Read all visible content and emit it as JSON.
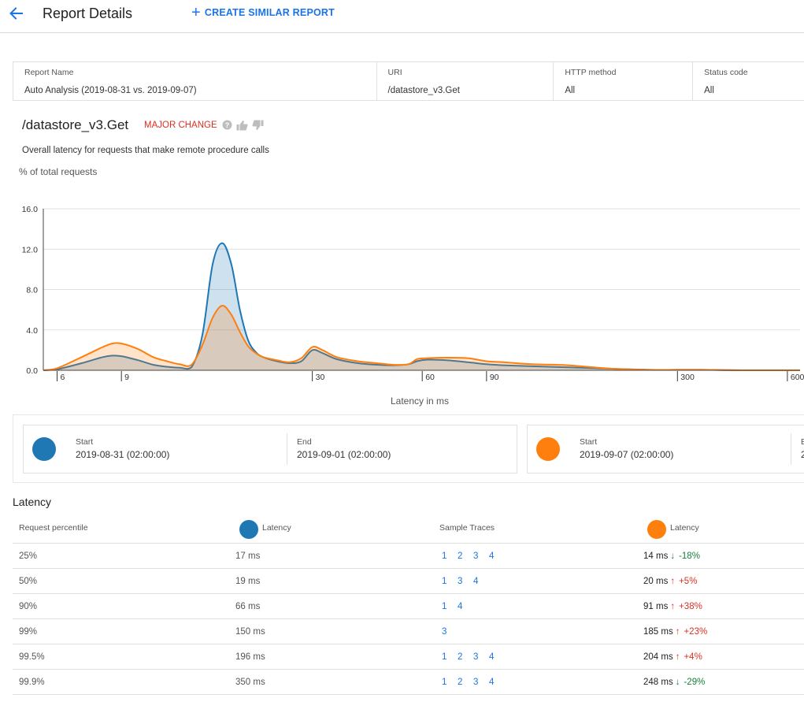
{
  "header": {
    "title": "Report Details",
    "create_label": "CREATE SIMILAR REPORT"
  },
  "info": {
    "report_name_label": "Report Name",
    "report_name_value": "Auto Analysis (2019-08-31 vs. 2019-09-07)",
    "uri_label": "URI",
    "uri_value": "/datastore_v3.Get",
    "method_label": "HTTP method",
    "method_value": "All",
    "status_label": "Status code",
    "status_value": "All"
  },
  "summary": {
    "title": "/datastore_v3.Get",
    "badge": "MAJOR CHANGE",
    "description": "Overall latency for requests that make remote procedure calls"
  },
  "colors": {
    "series_a": "#1f77b4",
    "series_b": "#ff7f0e",
    "link": "#1a73e8",
    "increase": "#d93025",
    "decrease": "#188038"
  },
  "chart_data": {
    "type": "area",
    "ylabel": "% of total requests",
    "xlabel": "Latency in ms",
    "xscale": "log",
    "xlim": [
      5.5,
      650
    ],
    "ylim": [
      0,
      16
    ],
    "yticks": [
      "0.0",
      "4.0",
      "8.0",
      "12.0",
      "16.0"
    ],
    "xticks": [
      "6",
      "9",
      "30",
      "60",
      "90",
      "300",
      "600"
    ],
    "grid": true,
    "series": [
      {
        "x": [
          5.5,
          6,
          7,
          8,
          8.5,
          9,
          10,
          11,
          12,
          13,
          14,
          15,
          16,
          17,
          18,
          19,
          20,
          21,
          22,
          24,
          26,
          28,
          30,
          32,
          35,
          40,
          45,
          50,
          55,
          58,
          62,
          70,
          80,
          90,
          100,
          120,
          150,
          200,
          250,
          300,
          350,
          400,
          500,
          600,
          650
        ],
        "values": [
          0,
          0.1,
          0.7,
          1.3,
          1.45,
          1.4,
          1.0,
          0.55,
          0.35,
          0.25,
          0.3,
          3.5,
          10.5,
          12.6,
          10.5,
          6.0,
          3.0,
          1.8,
          1.3,
          0.9,
          0.7,
          0.9,
          2.0,
          1.7,
          1.1,
          0.7,
          0.55,
          0.5,
          0.6,
          0.9,
          1.05,
          1.0,
          0.8,
          0.6,
          0.5,
          0.4,
          0.3,
          0.15,
          0.05,
          0.05,
          0.05,
          0.02,
          0,
          0,
          0
        ]
      },
      {
        "x": [
          5.5,
          6,
          7,
          8,
          8.5,
          9,
          10,
          11,
          12,
          13,
          14,
          15,
          16,
          17,
          18,
          19,
          20,
          21,
          22,
          24,
          26,
          28,
          30,
          32,
          35,
          40,
          45,
          50,
          55,
          58,
          62,
          70,
          80,
          90,
          100,
          120,
          150,
          200,
          250,
          300,
          350,
          400,
          500,
          600,
          650
        ],
        "values": [
          0,
          0.2,
          1.3,
          2.3,
          2.65,
          2.65,
          2.1,
          1.3,
          0.9,
          0.6,
          0.55,
          2.5,
          5.2,
          6.4,
          5.5,
          3.8,
          2.4,
          1.7,
          1.3,
          1.0,
          0.8,
          1.2,
          2.3,
          2.0,
          1.3,
          0.9,
          0.7,
          0.55,
          0.6,
          1.1,
          1.2,
          1.25,
          1.2,
          0.9,
          0.8,
          0.6,
          0.5,
          0.15,
          0.05,
          0.05,
          0.05,
          0.02,
          0,
          0,
          0
        ]
      }
    ]
  },
  "ranges": [
    {
      "start_label": "Start",
      "start_value": "2019-08-31 (02:00:00)",
      "end_label": "End",
      "end_value": "2019-09-01 (02:00:00)"
    },
    {
      "start_label": "Start",
      "start_value": "2019-09-07 (02:00:00)",
      "end_label": "E",
      "end_value": "2"
    }
  ],
  "latency": {
    "title": "Latency",
    "headers": {
      "percentile": "Request percentile",
      "latency_a": "Latency",
      "traces": "Sample Traces",
      "latency_b": "Latency"
    },
    "rows": [
      {
        "percentile": "25%",
        "latency_a": "17 ms",
        "traces": [
          "1",
          "2",
          "3",
          "4"
        ],
        "latency_b": "14 ms",
        "arrow": "↓",
        "change": "-18%",
        "dir": "down"
      },
      {
        "percentile": "50%",
        "latency_a": "19 ms",
        "traces": [
          "1",
          "3",
          "4"
        ],
        "latency_b": "20 ms",
        "arrow": "↑",
        "change": "+5%",
        "dir": "up"
      },
      {
        "percentile": "90%",
        "latency_a": "66 ms",
        "traces": [
          "1",
          "4"
        ],
        "latency_b": "91 ms",
        "arrow": "↑",
        "change": "+38%",
        "dir": "up"
      },
      {
        "percentile": "99%",
        "latency_a": "150 ms",
        "traces": [
          "3"
        ],
        "latency_b": "185 ms",
        "arrow": "↑",
        "change": "+23%",
        "dir": "up"
      },
      {
        "percentile": "99.5%",
        "latency_a": "196 ms",
        "traces": [
          "1",
          "2",
          "3",
          "4"
        ],
        "latency_b": "204 ms",
        "arrow": "↑",
        "change": "+4%",
        "dir": "up"
      },
      {
        "percentile": "99.9%",
        "latency_a": "350 ms",
        "traces": [
          "1",
          "2",
          "3",
          "4"
        ],
        "latency_b": "248 ms",
        "arrow": "↓",
        "change": "-29%",
        "dir": "down"
      }
    ]
  }
}
